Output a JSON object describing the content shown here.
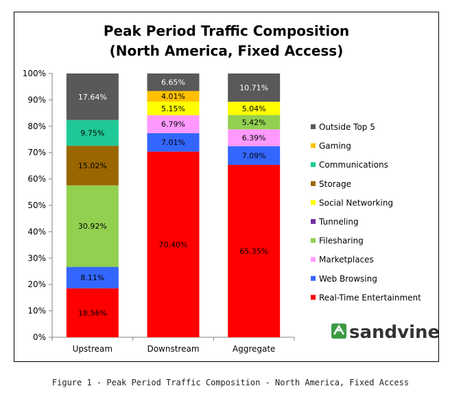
{
  "chart_data": {
    "type": "bar",
    "stacked": true,
    "title_line1": "Peak Period Traffic Composition",
    "title_line2": "(North America, Fixed Access)",
    "categories": [
      "Upstream",
      "Downstream",
      "Aggregate"
    ],
    "yticks": [
      "0%",
      "10%",
      "20%",
      "30%",
      "40%",
      "50%",
      "60%",
      "70%",
      "80%",
      "90%",
      "100%"
    ],
    "ylim": [
      0,
      100
    ],
    "grid": false,
    "legend_placement": "right",
    "series": [
      {
        "name": "Real-Time Entertainment",
        "color": "#ff0000",
        "values": [
          18.56,
          70.4,
          65.35
        ],
        "labels": [
          "18.56%",
          "70.40%",
          "65.35%"
        ]
      },
      {
        "name": "Web Browsing",
        "color": "#3366ff",
        "values": [
          8.11,
          7.01,
          7.09
        ],
        "labels": [
          "8.11%",
          "7.01%",
          "7.09%"
        ]
      },
      {
        "name": "Marketplaces",
        "color": "#ff99ff",
        "values": [
          0,
          6.79,
          6.39
        ],
        "labels": [
          "",
          "6.79%",
          "6.39%"
        ]
      },
      {
        "name": "Filesharing",
        "color": "#92d050",
        "values": [
          30.92,
          0,
          5.42
        ],
        "labels": [
          "30.92%",
          "",
          "5.42%"
        ]
      },
      {
        "name": "Tunneling",
        "color": "#7030a0",
        "values": [
          0,
          0,
          0
        ],
        "labels": [
          "",
          "",
          ""
        ]
      },
      {
        "name": "Social Networking",
        "color": "#ffff00",
        "values": [
          0,
          5.15,
          5.04
        ],
        "labels": [
          "",
          "5.15%",
          "5.04%"
        ]
      },
      {
        "name": "Storage",
        "color": "#996600",
        "values": [
          15.02,
          0,
          0
        ],
        "labels": [
          "15.02%",
          "",
          ""
        ]
      },
      {
        "name": "Communications",
        "color": "#1fc997",
        "values": [
          9.75,
          0,
          0
        ],
        "labels": [
          "9.75%",
          "",
          ""
        ]
      },
      {
        "name": "Gaming",
        "color": "#ffc000",
        "values": [
          0,
          4.01,
          0
        ],
        "labels": [
          "",
          "4.01%",
          ""
        ]
      },
      {
        "name": "Outside Top 5",
        "color": "#595959",
        "values": [
          17.64,
          6.65,
          10.71
        ],
        "labels": [
          "17.64%",
          "6.65%",
          "10.71%"
        ]
      }
    ]
  },
  "logo": {
    "text": "sandvine",
    "color": "#3c9a45"
  },
  "caption": "Figure 1 - Peak Period Traffic Composition - North America, Fixed Access"
}
